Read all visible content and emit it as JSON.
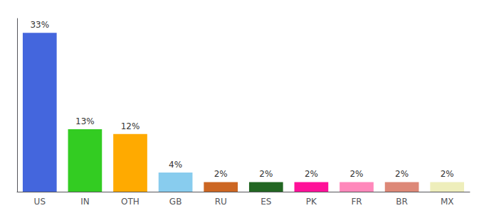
{
  "chart_data": {
    "type": "bar",
    "categories": [
      "US",
      "IN",
      "OTH",
      "GB",
      "RU",
      "ES",
      "PK",
      "FR",
      "BR",
      "MX"
    ],
    "values": [
      33,
      13,
      12,
      4,
      2,
      2,
      2,
      2,
      2,
      2
    ],
    "value_labels": [
      "33%",
      "13%",
      "12%",
      "4%",
      "2%",
      "2%",
      "2%",
      "2%",
      "2%",
      "2%"
    ],
    "colors": [
      "#4466dd",
      "#33cc22",
      "#ffaa00",
      "#88ccee",
      "#cc6622",
      "#226622",
      "#ff1199",
      "#ff88bb",
      "#dd8877",
      "#eeeebb"
    ],
    "ylim": [
      0,
      36
    ],
    "grid": false,
    "data_labels": true,
    "tick_labels": "x"
  }
}
